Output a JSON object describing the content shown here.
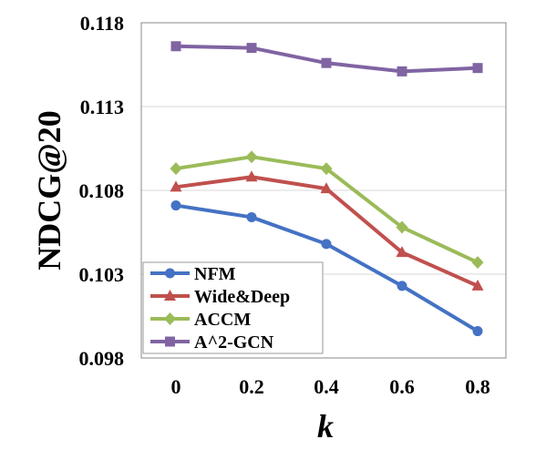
{
  "chart_data": {
    "type": "line",
    "xlabel": "k",
    "ylabel": "NDCG@20",
    "x": [
      0,
      0.2,
      0.4,
      0.6,
      0.8
    ],
    "x_tick_labels": [
      "0",
      "0.2",
      "0.4",
      "0.6",
      "0.8"
    ],
    "y_tick_labels": [
      "0.098",
      "0.103",
      "0.108",
      "0.113",
      "0.118"
    ],
    "ylim": [
      0.098,
      0.118
    ],
    "grid": "horizontal",
    "legend_position": "bottom-left",
    "series": [
      {
        "name": "NFM",
        "marker": "circle",
        "color": "#4472C4",
        "values": [
          0.1071,
          0.1064,
          0.1048,
          0.1023,
          0.0996
        ]
      },
      {
        "name": "Wide&Deep",
        "marker": "triangle",
        "color": "#C0504D",
        "values": [
          0.1082,
          0.1088,
          0.1081,
          0.1043,
          0.1023
        ]
      },
      {
        "name": "ACCM",
        "marker": "diamond",
        "color": "#9BBB59",
        "values": [
          0.1093,
          0.11,
          0.1093,
          0.1058,
          0.1037
        ]
      },
      {
        "name": "A^2-GCN",
        "marker": "square",
        "color": "#8064A2",
        "values": [
          0.1166,
          0.1165,
          0.1156,
          0.1151,
          0.1153
        ]
      }
    ]
  }
}
